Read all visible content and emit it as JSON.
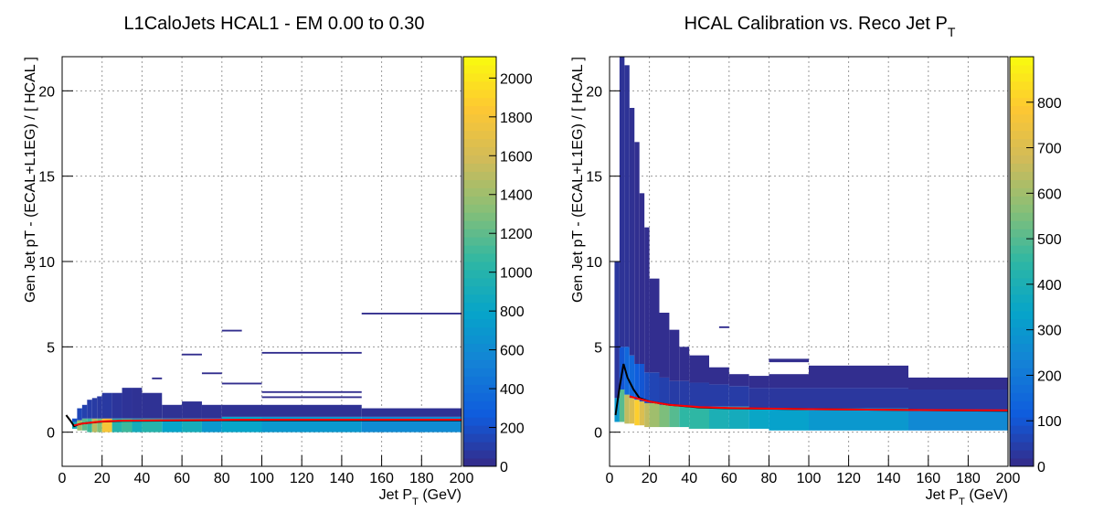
{
  "chart_data": [
    {
      "type": "heatmap",
      "title": "L1CaloJets HCAL1 - EM 0.00 to 0.30",
      "x_label": "Jet P_T (GeV)",
      "y_label": "Gen Jet pT - (ECAL+L1EG) / [ HCAL ]",
      "xlim": [
        0,
        200
      ],
      "ylim": [
        -2,
        22
      ],
      "zlim": [
        0,
        2110
      ],
      "xticks": [
        0,
        20,
        40,
        60,
        80,
        100,
        120,
        140,
        160,
        180,
        200
      ],
      "yticks": [
        0,
        5,
        10,
        15,
        20
      ],
      "zticks": [
        0,
        200,
        400,
        600,
        800,
        1000,
        1200,
        1400,
        1600,
        1800,
        2000
      ],
      "grid": true,
      "cells": [
        [
          5,
          7.5,
          0.2,
          0.6,
          900
        ],
        [
          5,
          7.5,
          0.6,
          0.8,
          200
        ],
        [
          7.5,
          10,
          0.1,
          0.7,
          1400
        ],
        [
          7.5,
          10,
          0.7,
          1.4,
          150
        ],
        [
          10,
          12.5,
          0.1,
          0.8,
          1200
        ],
        [
          10,
          12.5,
          0.8,
          1.6,
          120
        ],
        [
          12.5,
          15,
          0.0,
          0.8,
          1100
        ],
        [
          12.5,
          15,
          0.8,
          1.9,
          100
        ],
        [
          15,
          17.5,
          0.0,
          0.8,
          1500
        ],
        [
          15,
          17.5,
          0.8,
          2.0,
          90
        ],
        [
          17.5,
          20,
          0.0,
          0.8,
          1300
        ],
        [
          17.5,
          20,
          0.8,
          2.1,
          80
        ],
        [
          20,
          25,
          0.0,
          0.8,
          1800
        ],
        [
          20,
          25,
          0.8,
          2.3,
          80
        ],
        [
          25,
          30,
          0.0,
          0.8,
          1000
        ],
        [
          25,
          30,
          0.8,
          2.3,
          60
        ],
        [
          30,
          35,
          0.0,
          0.8,
          1100
        ],
        [
          30,
          35,
          0.8,
          2.6,
          50
        ],
        [
          35,
          40,
          0.0,
          0.8,
          900
        ],
        [
          35,
          40,
          0.8,
          2.6,
          40
        ],
        [
          40,
          50,
          0.0,
          0.8,
          1000
        ],
        [
          40,
          50,
          0.8,
          2.3,
          40
        ],
        [
          50,
          60,
          0.0,
          0.8,
          800
        ],
        [
          50,
          60,
          0.8,
          1.6,
          40
        ],
        [
          60,
          70,
          0.0,
          0.8,
          900
        ],
        [
          60,
          70,
          0.8,
          1.8,
          40
        ],
        [
          70,
          80,
          0.0,
          0.8,
          700
        ],
        [
          70,
          80,
          0.8,
          1.6,
          40
        ],
        [
          80,
          100,
          0.0,
          0.9,
          800
        ],
        [
          80,
          100,
          0.9,
          1.6,
          40
        ],
        [
          100,
          150,
          0.0,
          0.9,
          700
        ],
        [
          100,
          150,
          0.9,
          1.6,
          40
        ],
        [
          150,
          200,
          0.0,
          0.9,
          600
        ],
        [
          150,
          200,
          0.9,
          1.4,
          40
        ],
        [
          100,
          150,
          4.6,
          4.7,
          20
        ],
        [
          80,
          90,
          5.9,
          6.0,
          20
        ],
        [
          150,
          200,
          6.9,
          7.0,
          20
        ],
        [
          60,
          70,
          4.5,
          4.6,
          20
        ],
        [
          70,
          80,
          3.4,
          3.5,
          20
        ],
        [
          45,
          50,
          3.1,
          3.2,
          20
        ],
        [
          80,
          100,
          2.8,
          2.9,
          20
        ],
        [
          100,
          150,
          2.3,
          2.4,
          20
        ],
        [
          100,
          150,
          2.0,
          2.1,
          20
        ]
      ],
      "curves": [
        {
          "color": "#000000",
          "x": [
            2,
            4,
            6,
            8,
            10,
            14,
            20,
            30,
            50,
            80,
            120,
            200
          ],
          "values": [
            1.0,
            0.7,
            0.35,
            0.45,
            0.5,
            0.55,
            0.62,
            0.66,
            0.68,
            0.7,
            0.7,
            0.7
          ]
        },
        {
          "color": "#ff0000",
          "x": [
            6,
            10,
            14,
            20,
            30,
            50,
            80,
            120,
            200
          ],
          "values": [
            0.4,
            0.5,
            0.56,
            0.63,
            0.68,
            0.7,
            0.72,
            0.73,
            0.73
          ]
        }
      ]
    },
    {
      "type": "heatmap",
      "title": "HCAL Calibration vs. Reco Jet P_T",
      "x_label": "Jet P_T (GeV)",
      "y_label": "Gen Jet pT - (ECAL+L1EG) / [ HCAL ]",
      "xlim": [
        0,
        200
      ],
      "ylim": [
        -2,
        22
      ],
      "zlim": [
        0,
        900
      ],
      "xticks": [
        0,
        20,
        40,
        60,
        80,
        100,
        120,
        140,
        160,
        180,
        200
      ],
      "yticks": [
        0,
        5,
        10,
        15,
        20
      ],
      "zticks": [
        0,
        100,
        200,
        300,
        400,
        500,
        600,
        700,
        800
      ],
      "grid": true,
      "cells": [
        [
          2.5,
          5,
          0.6,
          2.0,
          300
        ],
        [
          2.5,
          5,
          2.0,
          10,
          30
        ],
        [
          5,
          7.5,
          0.6,
          2.5,
          500
        ],
        [
          5,
          7.5,
          2.5,
          5,
          100
        ],
        [
          5,
          7.5,
          5,
          22,
          20
        ],
        [
          7.5,
          10,
          0.5,
          2.2,
          650
        ],
        [
          7.5,
          10,
          2.2,
          5,
          150
        ],
        [
          7.5,
          10,
          5,
          21.5,
          20
        ],
        [
          10,
          12.5,
          0.5,
          2.0,
          700
        ],
        [
          10,
          12.5,
          2.0,
          4.5,
          150
        ],
        [
          10,
          12.5,
          4.5,
          19,
          15
        ],
        [
          12.5,
          15,
          0.4,
          1.9,
          800
        ],
        [
          12.5,
          15,
          1.9,
          4,
          120
        ],
        [
          12.5,
          15,
          4,
          17,
          12
        ],
        [
          15,
          17.5,
          0.4,
          1.8,
          700
        ],
        [
          15,
          17.5,
          1.8,
          4,
          100
        ],
        [
          15,
          17.5,
          4,
          14,
          10
        ],
        [
          17.5,
          20,
          0.3,
          1.7,
          650
        ],
        [
          17.5,
          20,
          1.7,
          3.5,
          80
        ],
        [
          17.5,
          20,
          3.5,
          12,
          10
        ],
        [
          20,
          25,
          0.3,
          1.7,
          600
        ],
        [
          20,
          25,
          1.7,
          3.5,
          60
        ],
        [
          20,
          25,
          3.5,
          9,
          10
        ],
        [
          25,
          30,
          0.3,
          1.6,
          550
        ],
        [
          25,
          30,
          1.6,
          3.2,
          50
        ],
        [
          25,
          30,
          3.2,
          7,
          10
        ],
        [
          30,
          35,
          0.3,
          1.6,
          500
        ],
        [
          30,
          35,
          1.6,
          3.0,
          40
        ],
        [
          30,
          35,
          3.0,
          6,
          10
        ],
        [
          35,
          40,
          0.3,
          1.5,
          450
        ],
        [
          35,
          40,
          1.5,
          3.0,
          40
        ],
        [
          35,
          40,
          3.0,
          5,
          10
        ],
        [
          40,
          50,
          0.2,
          1.5,
          450
        ],
        [
          40,
          50,
          1.5,
          2.9,
          40
        ],
        [
          40,
          50,
          2.9,
          4.5,
          10
        ],
        [
          50,
          60,
          0.2,
          1.5,
          400
        ],
        [
          50,
          60,
          1.5,
          2.8,
          40
        ],
        [
          50,
          60,
          2.8,
          3.8,
          10
        ],
        [
          60,
          70,
          0.2,
          1.5,
          380
        ],
        [
          60,
          70,
          1.5,
          2.7,
          40
        ],
        [
          60,
          70,
          2.7,
          3.4,
          10
        ],
        [
          70,
          80,
          0.2,
          1.4,
          350
        ],
        [
          70,
          80,
          1.4,
          2.6,
          30
        ],
        [
          70,
          80,
          2.6,
          3.3,
          10
        ],
        [
          80,
          100,
          0.1,
          1.4,
          330
        ],
        [
          80,
          100,
          1.4,
          2.6,
          30
        ],
        [
          80,
          100,
          2.6,
          3.4,
          10
        ],
        [
          100,
          150,
          0.1,
          1.4,
          300
        ],
        [
          100,
          150,
          1.4,
          2.6,
          30
        ],
        [
          100,
          150,
          2.6,
          3.9,
          10
        ],
        [
          150,
          200,
          0.1,
          1.3,
          250
        ],
        [
          150,
          200,
          1.3,
          2.5,
          30
        ],
        [
          150,
          200,
          2.5,
          3.2,
          10
        ],
        [
          80,
          100,
          4.1,
          4.3,
          10
        ],
        [
          55,
          60,
          6.1,
          6.2,
          10
        ]
      ],
      "curves": [
        {
          "color": "#000000",
          "x": [
            3,
            5,
            7,
            9,
            12,
            15,
            20,
            30,
            45,
            60,
            100,
            150,
            200
          ],
          "values": [
            1.0,
            2.6,
            4.0,
            3.2,
            2.5,
            2.0,
            1.8,
            1.6,
            1.45,
            1.4,
            1.35,
            1.3,
            1.25
          ]
        },
        {
          "color": "#ff0000",
          "x": [
            10,
            15,
            20,
            30,
            45,
            60,
            100,
            150,
            200
          ],
          "values": [
            2.1,
            1.95,
            1.8,
            1.6,
            1.47,
            1.42,
            1.35,
            1.3,
            1.28
          ]
        }
      ]
    }
  ]
}
